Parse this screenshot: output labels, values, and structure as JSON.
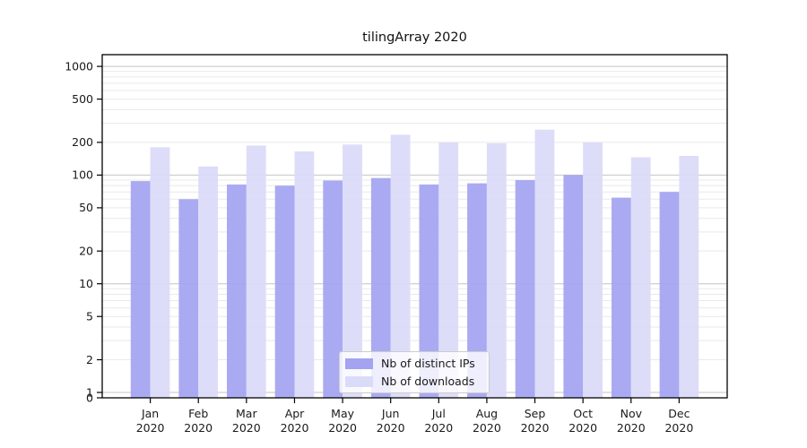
{
  "title": "tilingArray 2020",
  "chart_data": {
    "type": "bar",
    "title": "tilingArray 2020",
    "x_axis": {
      "categories": [
        "Jan 2020",
        "Feb 2020",
        "Mar 2020",
        "Apr 2020",
        "May 2020",
        "Jun 2020",
        "Jul 2020",
        "Aug 2020",
        "Sep 2020",
        "Oct 2020",
        "Nov 2020",
        "Dec 2020"
      ],
      "tick_label_lines": 2
    },
    "y_axis": {
      "scale": "log",
      "ticks": [
        0,
        1,
        2,
        5,
        10,
        20,
        50,
        100,
        200,
        500,
        1000
      ],
      "top_value": 1280
    },
    "series": [
      {
        "name": "Nb of distinct IPs",
        "color": "#a3a3f1",
        "values": [
          88,
          60,
          82,
          80,
          89,
          94,
          82,
          84,
          90,
          100,
          62,
          70
        ]
      },
      {
        "name": "Nb of downloads",
        "color": "#dadaf9",
        "values": [
          180,
          120,
          187,
          165,
          191,
          235,
          200,
          196,
          262,
          200,
          146,
          150
        ]
      }
    ],
    "legend": {
      "position": "lower center",
      "items": [
        "Nb of distinct IPs",
        "Nb of downloads"
      ]
    },
    "grid": {
      "horizontal_only": true,
      "minor_lines": true
    }
  },
  "colors": {
    "decade_grid": "#c4c4c4",
    "minor_grid": "#e9e9e9",
    "frame": "#000000",
    "tick": "#000000",
    "text": "#1a1a1a"
  }
}
